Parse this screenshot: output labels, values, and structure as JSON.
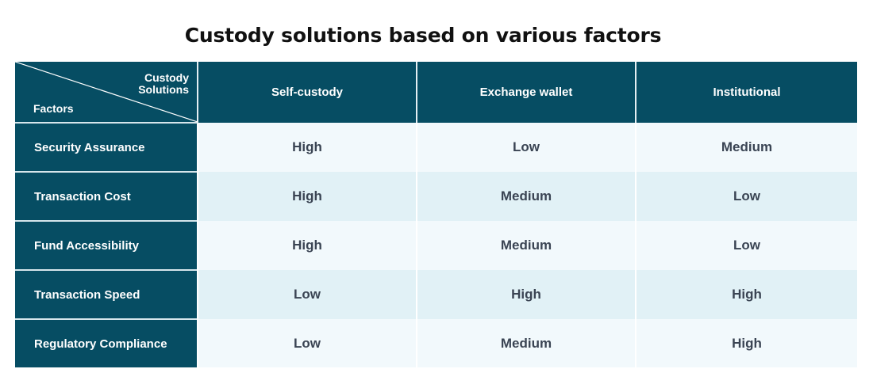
{
  "title": "Custody solutions based on various factors",
  "table": {
    "corner_top_label_line1": "Custody",
    "corner_top_label_line2": "Solutions",
    "corner_bottom_label": "Factors",
    "columns": [
      "Self-custody",
      "Exchange wallet",
      "Institutional"
    ],
    "rows": [
      {
        "factor": "Security Assurance",
        "values": [
          "High",
          "Low",
          "Medium"
        ]
      },
      {
        "factor": "Transaction Cost",
        "values": [
          "High",
          "Medium",
          "Low"
        ]
      },
      {
        "factor": "Fund Accessibility",
        "values": [
          "High",
          "Medium",
          "Low"
        ]
      },
      {
        "factor": "Transaction Speed",
        "values": [
          "Low",
          "High",
          "High"
        ]
      },
      {
        "factor": "Regulatory Compliance",
        "values": [
          "Low",
          "Medium",
          "High"
        ]
      }
    ]
  },
  "colors": {
    "header_bg": "#064d63",
    "row_light": "#f2f9fc",
    "row_dark": "#e1f1f6",
    "value_text": "#3a4453"
  }
}
